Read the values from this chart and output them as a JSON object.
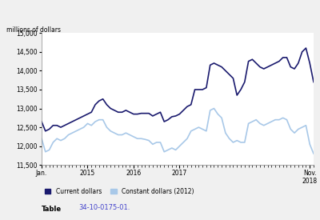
{
  "ylabel": "millions of dollars",
  "ylim": [
    11500,
    15000
  ],
  "yticks": [
    11500,
    12000,
    12500,
    13000,
    13500,
    14000,
    14500,
    15000
  ],
  "background_color": "#f0f0f0",
  "plot_background": "#ffffff",
  "current_dollars_color": "#1a1a6e",
  "constant_dollars_color": "#a8c8e8",
  "legend_label_current": "Current dollars",
  "legend_label_constant": "Constant dollars (2012)",
  "table_label": "Table",
  "table_link": "34-10-0175-01.",
  "current_dollars": [
    12650,
    12400,
    12450,
    12550,
    12550,
    12500,
    12550,
    12600,
    12650,
    12700,
    12750,
    12800,
    12850,
    12900,
    13100,
    13200,
    13250,
    13100,
    13000,
    12950,
    12900,
    12900,
    12950,
    12900,
    12850,
    12850,
    12870,
    12870,
    12870,
    12800,
    12850,
    12900,
    12650,
    12700,
    12780,
    12800,
    12850,
    12950,
    13050,
    13100,
    13500,
    13500,
    13500,
    13550,
    14150,
    14200,
    14150,
    14100,
    14000,
    13900,
    13800,
    13350,
    13500,
    13700,
    14250,
    14300,
    14200,
    14100,
    14050,
    14100,
    14150,
    14200,
    14250,
    14350,
    14350,
    14100,
    14050,
    14200,
    14500,
    14600,
    14200,
    13700
  ],
  "constant_dollars": [
    12200,
    11850,
    11900,
    12100,
    12200,
    12150,
    12200,
    12300,
    12350,
    12400,
    12450,
    12500,
    12600,
    12550,
    12650,
    12700,
    12700,
    12500,
    12400,
    12350,
    12300,
    12300,
    12350,
    12300,
    12250,
    12200,
    12200,
    12180,
    12150,
    12050,
    12100,
    12100,
    11850,
    11900,
    11950,
    11900,
    12000,
    12100,
    12200,
    12400,
    12450,
    12500,
    12450,
    12400,
    12950,
    13000,
    12850,
    12750,
    12350,
    12200,
    12100,
    12150,
    12100,
    12100,
    12600,
    12650,
    12700,
    12600,
    12550,
    12600,
    12650,
    12700,
    12700,
    12750,
    12700,
    12450,
    12350,
    12450,
    12500,
    12550,
    12050,
    11800
  ],
  "n_months": 72,
  "x_tick_positions": [
    0,
    12,
    24,
    36,
    70
  ],
  "x_tick_labels": [
    "Jan.",
    "2015",
    "2016",
    "2017",
    "Nov.\n2018"
  ]
}
